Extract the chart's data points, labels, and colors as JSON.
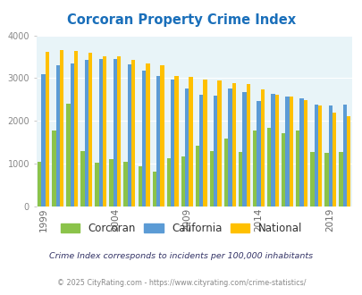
{
  "title": "Corcoran Property Crime Index",
  "title_color": "#1a6fba",
  "years": [
    1999,
    2000,
    2001,
    2002,
    2003,
    2004,
    2005,
    2006,
    2007,
    2008,
    2009,
    2010,
    2011,
    2012,
    2013,
    2014,
    2015,
    2016,
    2017,
    2018,
    2019,
    2020
  ],
  "corcoran": [
    1050,
    1780,
    2400,
    1300,
    1020,
    1100,
    1050,
    950,
    820,
    1130,
    1170,
    1430,
    1300,
    1580,
    1280,
    1770,
    1840,
    1710,
    1780,
    1280,
    1260,
    1280
  ],
  "california": [
    3100,
    3310,
    3350,
    3430,
    3450,
    3450,
    3330,
    3180,
    3055,
    2960,
    2760,
    2620,
    2590,
    2750,
    2670,
    2460,
    2640,
    2570,
    2520,
    2390,
    2370,
    2390
  ],
  "national": [
    3620,
    3660,
    3640,
    3600,
    3520,
    3510,
    3430,
    3350,
    3300,
    3060,
    3020,
    2960,
    2950,
    2890,
    2860,
    2730,
    2620,
    2570,
    2490,
    2370,
    2200,
    2110
  ],
  "color_corcoran": "#8bc34a",
  "color_california": "#5b9bd5",
  "color_national": "#ffc000",
  "bg_color": "#e8f4f8",
  "ylim": [
    0,
    4000
  ],
  "yticks": [
    0,
    1000,
    2000,
    3000,
    4000
  ],
  "xtick_years": [
    1999,
    2004,
    2009,
    2014,
    2019
  ],
  "legend_labels": [
    "Corcoran",
    "California",
    "National"
  ],
  "footnote1": "Crime Index corresponds to incidents per 100,000 inhabitants",
  "footnote2": "© 2025 CityRating.com - https://www.cityrating.com/crime-statistics/",
  "footnote1_color": "#333366",
  "footnote2_color": "#888888"
}
